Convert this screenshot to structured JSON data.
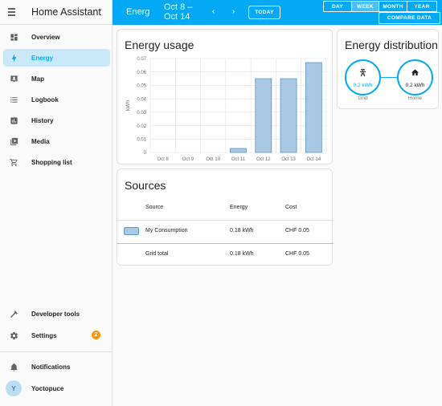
{
  "app": {
    "title": "Home Assistant"
  },
  "sidebar": {
    "items": [
      {
        "label": "Overview",
        "icon": "dashboard-icon"
      },
      {
        "label": "Energy",
        "icon": "lightning-bolt-icon",
        "active": true
      },
      {
        "label": "Map",
        "icon": "map-icon"
      },
      {
        "label": "Logbook",
        "icon": "logbook-icon"
      },
      {
        "label": "History",
        "icon": "history-chart-icon"
      },
      {
        "label": "Media",
        "icon": "media-icon"
      },
      {
        "label": "Shopping list",
        "icon": "cart-icon"
      }
    ],
    "developer_tools": "Developer tools",
    "settings": "Settings",
    "settings_badge": "2",
    "notifications": "Notifications",
    "user_name": "Yoctopuce",
    "user_initial": "Y"
  },
  "topbar": {
    "title": "Energ",
    "range_line1": "Oct 8 –",
    "range_line2": "Oct 14",
    "prev": "‹",
    "next": "›",
    "today": "TODAY",
    "periods": [
      "DAY",
      "WEEK",
      "MONTH",
      "YEAR"
    ],
    "selected_period": "WEEK",
    "compare": "COMPARE DATA"
  },
  "energy_usage": {
    "title": "Energy usage"
  },
  "chart_data": {
    "type": "bar",
    "title": "Energy usage",
    "ylabel": "kWh",
    "categories": [
      "Oct 8",
      "Oct 9",
      "Oct 10",
      "Oct 11",
      "Oct 12",
      "Oct 13",
      "Oct 14"
    ],
    "values": [
      0,
      0,
      0,
      0.003,
      0.055,
      0.055,
      0.067
    ],
    "yticks": [
      "0",
      "0.01",
      "0.02",
      "0.03",
      "0.04",
      "0.05",
      "0.06",
      "0.07"
    ],
    "ylim": [
      0,
      0.07
    ],
    "grid": true,
    "colors": {
      "bar_fill": "#a8c8e4",
      "bar_stroke": "#5b97c7"
    }
  },
  "sources": {
    "title": "Sources",
    "headers": {
      "source": "Source",
      "energy": "Energy",
      "cost": "Cost"
    },
    "rows": [
      {
        "name": "My Consumption",
        "energy": "0.18 kWh",
        "cost": "CHF 0.05"
      }
    ],
    "total": {
      "name": "Grid total",
      "energy": "0.18 kWh",
      "cost": "CHF 0.05"
    }
  },
  "distribution": {
    "title": "Energy distribution",
    "grid": {
      "value": "0.2 kWh",
      "label": "Grid",
      "icon": "transmission-tower-icon"
    },
    "home": {
      "value": "0.2 kWh",
      "label": "Home",
      "icon": "home-icon"
    }
  },
  "colors": {
    "accent": "#03a9f4",
    "sidebar_active_bg": "#c9e9fb",
    "badge": "#ff9800"
  }
}
